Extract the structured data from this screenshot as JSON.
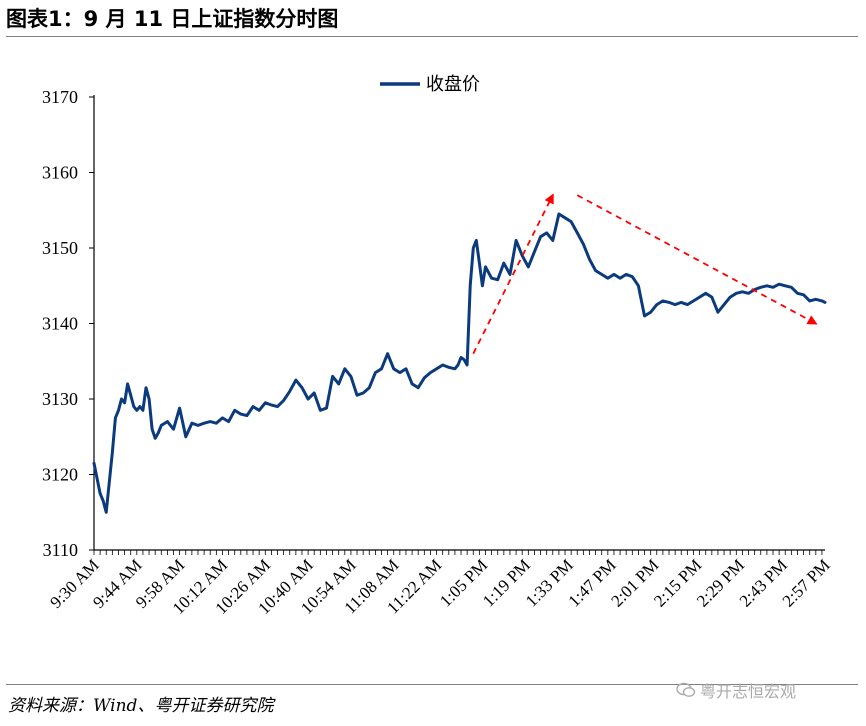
{
  "header": {
    "title": "图表1：9 月 11 日上证指数分时图"
  },
  "footer": {
    "source": "资料来源：Wind、粤开证券研究院",
    "watermark": "粤开志恒宏观"
  },
  "colors": {
    "line": "#0b3a7d",
    "arrow": "#ff0000",
    "axis": "#000000",
    "rule": "#7f7f7f"
  },
  "chart_data": {
    "type": "line",
    "title": "",
    "xlabel": "",
    "ylabel": "",
    "ylim": [
      3110,
      3170
    ],
    "yticks": [
      "3110",
      "3120",
      "3130",
      "3140",
      "3150",
      "3160",
      "3170"
    ],
    "xticks": [
      "9:30 AM",
      "9:44 AM",
      "9:58 AM",
      "10:12 AM",
      "10:26 AM",
      "10:40 AM",
      "10:54 AM",
      "11:08 AM",
      "11:22 AM",
      "1:05 PM",
      "1:19 PM",
      "1:33 PM",
      "1:47 PM",
      "2:01 PM",
      "2:15 PM",
      "2:29 PM",
      "2:43 PM",
      "2:57 PM"
    ],
    "legend": {
      "placement": "top-center"
    },
    "grid": false,
    "series": [
      {
        "name": "收盘价",
        "x_index": [
          0,
          2,
          3,
          4,
          5,
          6,
          7,
          8,
          9,
          10,
          11,
          12,
          13,
          14,
          15,
          16,
          17,
          18,
          19,
          20,
          21,
          22,
          24,
          26,
          28,
          30,
          32,
          34,
          36,
          38,
          40,
          42,
          44,
          46,
          48,
          50,
          52,
          54,
          56,
          58,
          60,
          62,
          64,
          66,
          68,
          70,
          72,
          74,
          76,
          78,
          80,
          82,
          84,
          86,
          88,
          90,
          92,
          94,
          96,
          98,
          100,
          102,
          104,
          106,
          108,
          110,
          112,
          114,
          116,
          118,
          119,
          120,
          121,
          122,
          123,
          124,
          125,
          126,
          127,
          128,
          130,
          132,
          134,
          136,
          138,
          140,
          142,
          144,
          146,
          148,
          150,
          152,
          154,
          156,
          158,
          160,
          162,
          164,
          166,
          168,
          170,
          172,
          174,
          176,
          178,
          180,
          182,
          184,
          186,
          188,
          190,
          192,
          194,
          196,
          198,
          200,
          202,
          204,
          206,
          208,
          210,
          212,
          214,
          216,
          218,
          220,
          222,
          224,
          226,
          228,
          230,
          232,
          234,
          236,
          238,
          239
        ],
        "values": [
          3121.5,
          3117.5,
          3116.5,
          3115.0,
          3119.0,
          3123.0,
          3127.5,
          3128.5,
          3130.0,
          3129.5,
          3132.0,
          3130.5,
          3129.0,
          3128.5,
          3129.0,
          3128.5,
          3131.5,
          3130.0,
          3126.0,
          3124.8,
          3125.5,
          3126.5,
          3127.0,
          3126.0,
          3128.8,
          3125.0,
          3126.8,
          3126.5,
          3126.8,
          3127.0,
          3126.8,
          3127.5,
          3127.0,
          3128.5,
          3128.0,
          3127.8,
          3129.0,
          3128.5,
          3129.5,
          3129.2,
          3129.0,
          3129.8,
          3131.0,
          3132.5,
          3131.5,
          3130.0,
          3130.8,
          3128.5,
          3128.8,
          3133.0,
          3132.0,
          3134.0,
          3133.0,
          3130.5,
          3130.8,
          3131.5,
          3133.5,
          3134.0,
          3136.0,
          3134.0,
          3133.5,
          3134.0,
          3132.0,
          3131.5,
          3132.8,
          3133.5,
          3134.0,
          3134.5,
          3134.2,
          3134.0,
          3134.5,
          3135.5,
          3135.2,
          3134.5,
          3145.0,
          3150.0,
          3151.0,
          3148.0,
          3145.0,
          3147.5,
          3146.0,
          3145.8,
          3148.0,
          3146.5,
          3151.0,
          3149.0,
          3147.5,
          3149.5,
          3151.5,
          3152.0,
          3151.0,
          3154.5,
          3154.0,
          3153.5,
          3152.0,
          3150.5,
          3148.5,
          3147.0,
          3146.5,
          3146.0,
          3146.5,
          3146.0,
          3146.5,
          3146.2,
          3145.0,
          3141.0,
          3141.5,
          3142.5,
          3143.0,
          3142.8,
          3142.5,
          3142.8,
          3142.5,
          3143.0,
          3143.5,
          3144.0,
          3143.5,
          3141.5,
          3142.5,
          3143.5,
          3144.0,
          3144.2,
          3144.0,
          3144.5,
          3144.8,
          3145.0,
          3144.8,
          3145.2,
          3145.0,
          3144.8,
          3144.0,
          3143.8,
          3143.0,
          3143.2,
          3143.0,
          3142.8
        ]
      }
    ],
    "annotations": [
      {
        "type": "arrow",
        "style": "dashed",
        "from": {
          "x_index": 124,
          "y": 3136
        },
        "to": {
          "x_index": 150,
          "y": 3157
        }
      },
      {
        "type": "arrow",
        "style": "dashed",
        "from": {
          "x_index": 158,
          "y": 3157
        },
        "to": {
          "x_index": 236,
          "y": 3140
        }
      }
    ],
    "x_total_points": 240
  }
}
